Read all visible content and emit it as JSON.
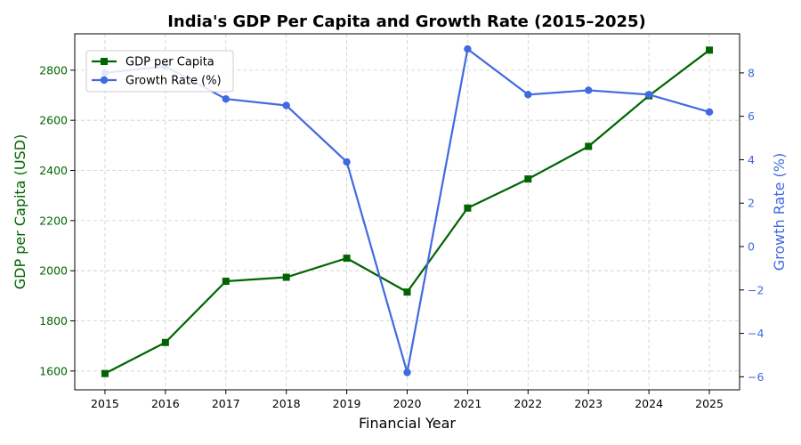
{
  "chart_data": {
    "type": "line",
    "title": "India's GDP Per Capita and Growth Rate (2015–2025)",
    "xlabel": "Financial Year",
    "ylabel_left": "GDP per Capita (USD)",
    "ylabel_right": "Growth Rate (%)",
    "x": [
      "2015",
      "2016",
      "2017",
      "2018",
      "2019",
      "2020",
      "2021",
      "2022",
      "2023",
      "2024",
      "2025"
    ],
    "ylim_left": [
      1525,
      2945
    ],
    "yticks_left": [
      1600,
      1800,
      2000,
      2200,
      2400,
      2600,
      2800
    ],
    "ylim_right": [
      -6.6,
      9.8
    ],
    "yticks_right": [
      -6,
      -4,
      -2,
      0,
      2,
      4,
      6,
      8
    ],
    "grid": true,
    "legend_position": "upper-left",
    "series": [
      {
        "name": "GDP per Capita",
        "axis": "left",
        "color": "#006400",
        "marker": "square",
        "values": [
          1590,
          1714,
          1958,
          1974,
          2050,
          1915,
          2250,
          2366,
          2496,
          2698,
          2880
        ]
      },
      {
        "name": "Growth Rate (%)",
        "axis": "right",
        "color": "#4169E1",
        "marker": "circle",
        "values": [
          8.0,
          8.3,
          6.8,
          6.5,
          3.9,
          -5.8,
          9.1,
          7.0,
          7.2,
          7.0,
          6.2
        ]
      }
    ]
  }
}
